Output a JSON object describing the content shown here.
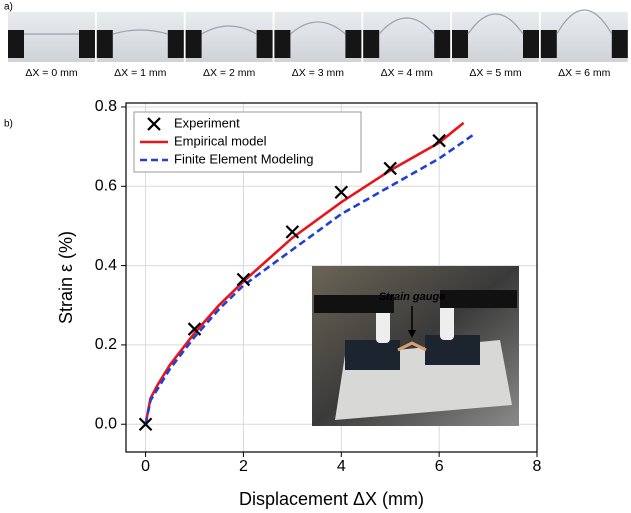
{
  "panel_a": {
    "label": "a)",
    "photos": [
      "ΔX = 0 mm",
      "ΔX = 1 mm",
      "ΔX = 2 mm",
      "ΔX = 3 mm",
      "ΔX = 4 mm",
      "ΔX = 5 mm",
      "ΔX = 6 mm"
    ]
  },
  "panel_b": {
    "label": "b)",
    "inset_label": "Strain gauge"
  },
  "chart_data": {
    "type": "line",
    "x_label": "Displacement ΔX (mm)",
    "y_label": "Strain ε (%)",
    "xlim": [
      -0.4,
      8
    ],
    "ylim": [
      -0.07,
      0.81
    ],
    "xticks": [
      0,
      2,
      4,
      6,
      8
    ],
    "yticks": [
      {
        "value": 0,
        "label": "0.0"
      },
      {
        "value": 0.2,
        "label": "0.2"
      },
      {
        "value": 0.4,
        "label": "0.4"
      },
      {
        "value": 0.6,
        "label": "0.6"
      },
      {
        "value": 0.8,
        "label": "0.8"
      }
    ],
    "grid": true,
    "legend": "top-left",
    "series": [
      {
        "name": "Experiment",
        "color": "#000000",
        "style": "marker",
        "x": [
          0,
          1,
          2,
          3,
          4,
          5,
          6
        ],
        "values": [
          0,
          0.24,
          0.365,
          0.485,
          0.585,
          0.645,
          0.715
        ]
      },
      {
        "name": "Empirical model",
        "color": "#e8141b",
        "style": "solid",
        "x": [
          0,
          0.1,
          0.25,
          0.5,
          1,
          1.5,
          2,
          3,
          4,
          5,
          6,
          6.5
        ],
        "values": [
          0,
          0.065,
          0.1,
          0.15,
          0.23,
          0.3,
          0.36,
          0.47,
          0.56,
          0.64,
          0.71,
          0.76
        ]
      },
      {
        "name": "Finite Element Modeling",
        "color": "#1f3fd6",
        "style": "dashed",
        "x": [
          0,
          0.1,
          0.25,
          0.5,
          1,
          1.5,
          2,
          3,
          4,
          5,
          6,
          6.7
        ],
        "values": [
          0,
          0.06,
          0.09,
          0.14,
          0.22,
          0.29,
          0.35,
          0.44,
          0.53,
          0.6,
          0.67,
          0.73
        ]
      }
    ]
  }
}
